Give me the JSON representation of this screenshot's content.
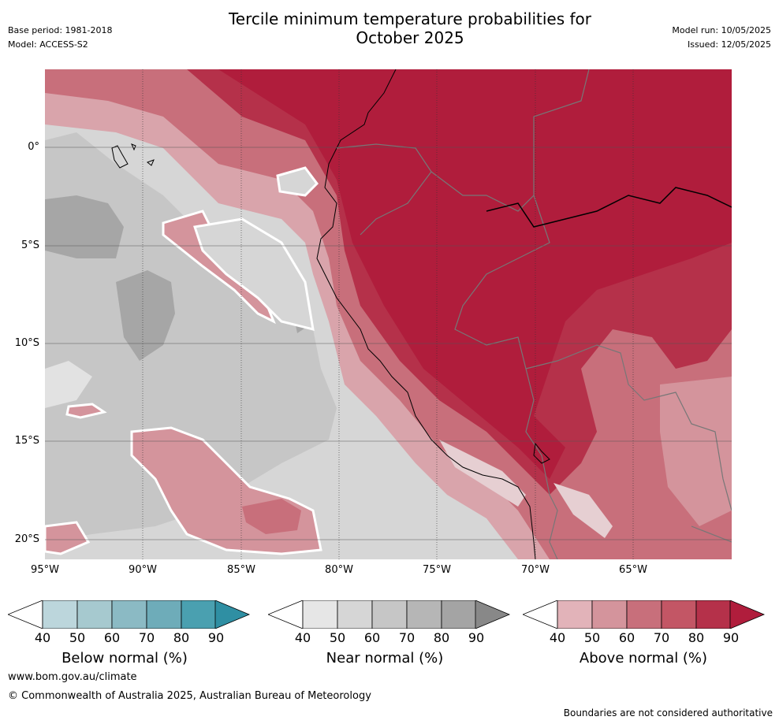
{
  "title_line1": "Tercile minimum temperature probabilities for",
  "title_line2": "October 2025",
  "meta_left": {
    "base_period": "Base period: 1981-2018",
    "model": "Model: ACCESS-S2"
  },
  "meta_right": {
    "model_run": "Model run: 10/05/2025",
    "issued": "Issued: 12/05/2025"
  },
  "latitudes": [
    "0°",
    "5°S",
    "10°S",
    "15°S",
    "20°S"
  ],
  "longitudes": [
    "95°W",
    "90°W",
    "85°W",
    "80°W",
    "75°W",
    "70°W",
    "65°W"
  ],
  "colorbars": [
    {
      "title": "Below normal (%)",
      "ticks": [
        "40",
        "50",
        "60",
        "70",
        "80",
        "90"
      ],
      "colors": [
        "#bcd6dc",
        "#a6c9cf",
        "#8bbac4",
        "#6eacb9",
        "#4aa0b0",
        "#2f8fa3"
      ]
    },
    {
      "title": "Near normal (%)",
      "ticks": [
        "40",
        "50",
        "60",
        "70",
        "80",
        "90"
      ],
      "colors": [
        "#e6e6e6",
        "#d6d6d6",
        "#c6c6c6",
        "#b6b6b6",
        "#a4a4a4",
        "#888888"
      ]
    },
    {
      "title": "Above normal (%)",
      "ticks": [
        "40",
        "50",
        "60",
        "70",
        "80",
        "90"
      ],
      "colors": [
        "#e2b3b9",
        "#d4949c",
        "#c86f7b",
        "#c35665",
        "#b5314a",
        "#b01d3c"
      ]
    }
  ],
  "footer": {
    "url": "www.bom.gov.au/climate",
    "copyright": "© Commonwealth of Australia 2025, Australian Bureau of Meteorology",
    "disclaimer": "Boundaries are not considered authoritative"
  }
}
